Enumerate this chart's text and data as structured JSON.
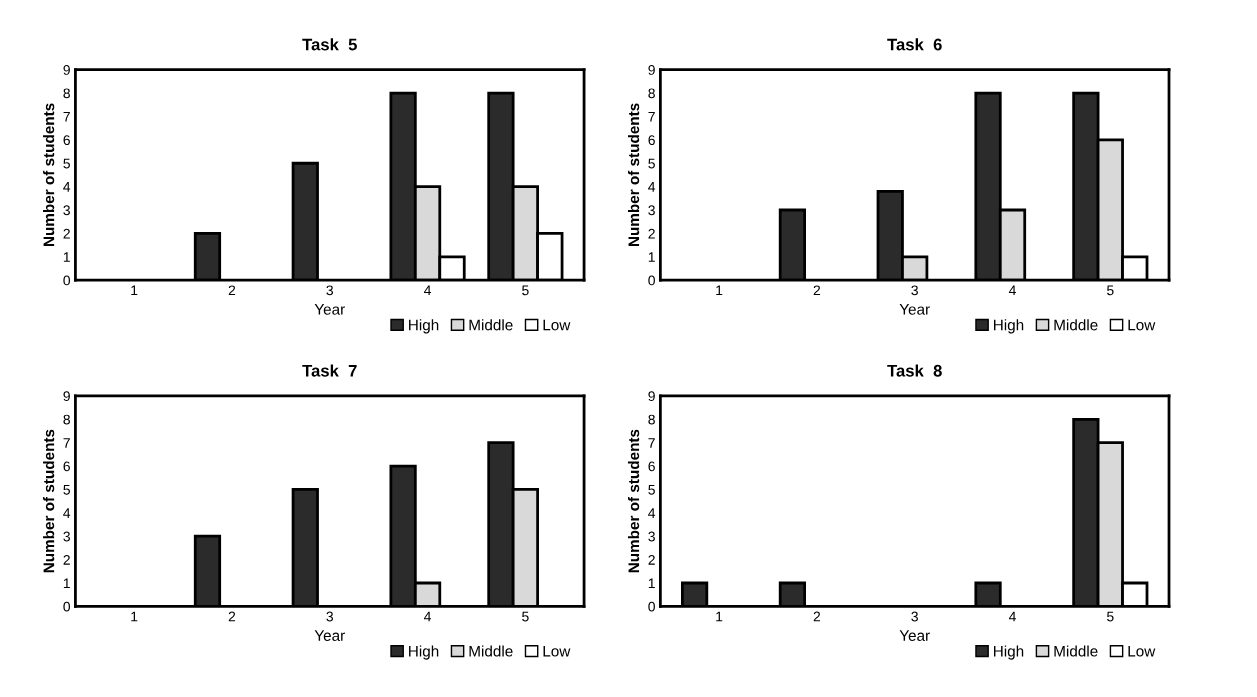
{
  "chart_data": [
    {
      "type": "bar",
      "title": "Task  5",
      "xlabel": "Year",
      "ylabel": "Number of students",
      "categories": [
        "1",
        "2",
        "3",
        "4",
        "5"
      ],
      "ylim": [
        0,
        9
      ],
      "yticks": [
        0,
        1,
        2,
        3,
        4,
        5,
        6,
        7,
        8,
        9
      ],
      "legend": "bottom right",
      "grid": false,
      "series": [
        {
          "name": "High",
          "color": "#2b2b2b",
          "values": [
            0,
            2,
            5,
            8,
            8
          ]
        },
        {
          "name": "Middle",
          "color": "#d9d9d9",
          "values": [
            0,
            0,
            0,
            4,
            4
          ]
        },
        {
          "name": "Low",
          "color": "#ffffff",
          "values": [
            0,
            0,
            0,
            1,
            2
          ]
        }
      ]
    },
    {
      "type": "bar",
      "title": "Task  6",
      "xlabel": "Year",
      "ylabel": "Number of students",
      "categories": [
        "1",
        "2",
        "3",
        "4",
        "5"
      ],
      "ylim": [
        0,
        9
      ],
      "yticks": [
        0,
        1,
        2,
        3,
        4,
        5,
        6,
        7,
        8,
        9
      ],
      "legend": "bottom right",
      "grid": false,
      "series": [
        {
          "name": "High",
          "color": "#2b2b2b",
          "values": [
            0,
            3,
            3.8,
            8,
            8
          ]
        },
        {
          "name": "Middle",
          "color": "#d9d9d9",
          "values": [
            0,
            0,
            1,
            3,
            6
          ]
        },
        {
          "name": "Low",
          "color": "#ffffff",
          "values": [
            0,
            0,
            0,
            0,
            1
          ]
        }
      ]
    },
    {
      "type": "bar",
      "title": "Task  7",
      "xlabel": "Year",
      "ylabel": "Number of students",
      "categories": [
        "1",
        "2",
        "3",
        "4",
        "5"
      ],
      "ylim": [
        0,
        9
      ],
      "yticks": [
        0,
        1,
        2,
        3,
        4,
        5,
        6,
        7,
        8,
        9
      ],
      "legend": "bottom right",
      "grid": false,
      "series": [
        {
          "name": "High",
          "color": "#2b2b2b",
          "values": [
            0,
            3,
            5,
            6,
            7
          ]
        },
        {
          "name": "Middle",
          "color": "#d9d9d9",
          "values": [
            0,
            0,
            0,
            1,
            5
          ]
        },
        {
          "name": "Low",
          "color": "#ffffff",
          "values": [
            0,
            0,
            0,
            0,
            0
          ]
        }
      ]
    },
    {
      "type": "bar",
      "title": "Task  8",
      "xlabel": "Year",
      "ylabel": "Number of students",
      "categories": [
        "1",
        "2",
        "3",
        "4",
        "5"
      ],
      "ylim": [
        0,
        9
      ],
      "yticks": [
        0,
        1,
        2,
        3,
        4,
        5,
        6,
        7,
        8,
        9
      ],
      "legend": "bottom right",
      "grid": false,
      "series": [
        {
          "name": "High",
          "color": "#2b2b2b",
          "values": [
            1,
            1,
            0,
            1,
            8
          ]
        },
        {
          "name": "Middle",
          "color": "#d9d9d9",
          "values": [
            0,
            0,
            0,
            0,
            7
          ]
        },
        {
          "name": "Low",
          "color": "#ffffff",
          "values": [
            0,
            0,
            0,
            0,
            1
          ]
        }
      ]
    }
  ]
}
